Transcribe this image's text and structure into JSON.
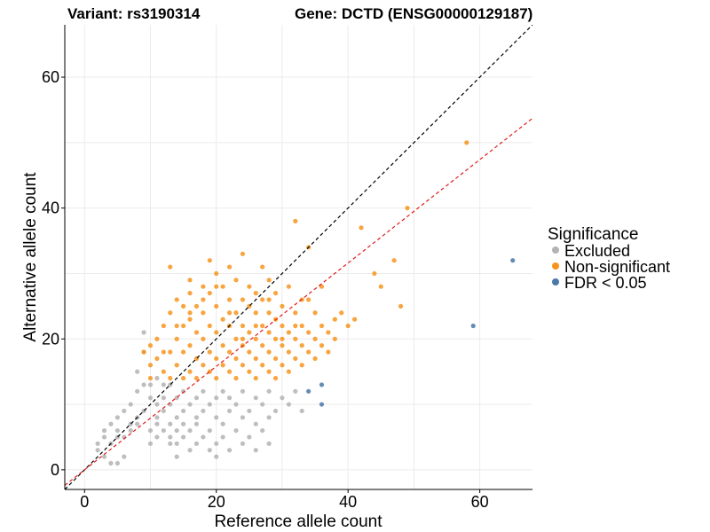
{
  "chart_data": {
    "type": "scatter",
    "title_variant": "Variant: rs3190314",
    "title_gene": "Gene: DCTD (ENSG00000129187)",
    "xlabel": "Reference allele count",
    "ylabel": "Alternative allele count",
    "xlim": [
      -3,
      68
    ],
    "ylim": [
      -3,
      68
    ],
    "xticks": [
      0,
      20,
      40,
      60
    ],
    "yticks": [
      0,
      20,
      40,
      60
    ],
    "xtick_labels": [
      "0",
      "20",
      "40",
      "60"
    ],
    "ytick_labels": [
      "0",
      "20",
      "40",
      "60"
    ],
    "grid": true,
    "legend": {
      "title": "Significance",
      "position": "right",
      "entries": [
        {
          "label": "Excluded",
          "color": "#b3b3b3"
        },
        {
          "label": "Non-significant",
          "color": "#f7941d"
        },
        {
          "label": "FDR < 0.05",
          "color": "#4a78a8"
        }
      ]
    },
    "reference_lines": [
      {
        "kind": "identity",
        "slope": 1.0,
        "intercept": 0,
        "color": "#000000",
        "style": "dashed"
      },
      {
        "kind": "fit",
        "slope": 0.79,
        "intercept": 0,
        "color": "#e31a1c",
        "style": "dashed"
      }
    ],
    "series": [
      {
        "name": "Excluded",
        "color": "#b3b3b3",
        "points": [
          [
            2,
            4
          ],
          [
            3,
            5
          ],
          [
            3,
            6
          ],
          [
            4,
            4
          ],
          [
            4,
            7
          ],
          [
            5,
            5
          ],
          [
            5,
            6
          ],
          [
            5,
            8
          ],
          [
            6,
            9
          ],
          [
            6,
            5
          ],
          [
            7,
            6
          ],
          [
            7,
            7
          ],
          [
            7,
            10
          ],
          [
            8,
            7
          ],
          [
            8,
            8
          ],
          [
            8,
            12
          ],
          [
            8,
            15
          ],
          [
            9,
            9
          ],
          [
            9,
            13
          ],
          [
            9,
            18
          ],
          [
            9,
            21
          ],
          [
            10,
            4
          ],
          [
            10,
            6
          ],
          [
            10,
            11
          ],
          [
            10,
            13
          ],
          [
            11,
            5
          ],
          [
            11,
            7
          ],
          [
            11,
            8
          ],
          [
            11,
            10
          ],
          [
            11,
            14
          ],
          [
            12,
            6
          ],
          [
            12,
            9
          ],
          [
            12,
            11
          ],
          [
            12,
            13
          ],
          [
            13,
            4
          ],
          [
            13,
            5
          ],
          [
            13,
            7
          ],
          [
            13,
            10
          ],
          [
            13,
            13
          ],
          [
            14,
            2
          ],
          [
            14,
            4
          ],
          [
            14,
            6
          ],
          [
            14,
            8
          ],
          [
            14,
            11
          ],
          [
            15,
            5
          ],
          [
            15,
            7
          ],
          [
            15,
            9
          ],
          [
            15,
            12
          ],
          [
            16,
            3
          ],
          [
            16,
            6
          ],
          [
            16,
            10
          ],
          [
            17,
            4
          ],
          [
            17,
            7
          ],
          [
            17,
            8
          ],
          [
            17,
            11
          ],
          [
            18,
            5
          ],
          [
            18,
            9
          ],
          [
            18,
            12
          ],
          [
            19,
            3
          ],
          [
            19,
            6
          ],
          [
            19,
            10
          ],
          [
            20,
            2
          ],
          [
            20,
            4
          ],
          [
            20,
            8
          ],
          [
            20,
            11
          ],
          [
            21,
            5
          ],
          [
            21,
            7
          ],
          [
            21,
            12
          ],
          [
            22,
            3
          ],
          [
            22,
            9
          ],
          [
            22,
            11
          ],
          [
            23,
            6
          ],
          [
            23,
            10
          ],
          [
            24,
            4
          ],
          [
            24,
            8
          ],
          [
            24,
            12
          ],
          [
            25,
            5
          ],
          [
            25,
            9
          ],
          [
            26,
            7
          ],
          [
            26,
            11
          ],
          [
            27,
            6
          ],
          [
            27,
            10
          ],
          [
            28,
            4
          ],
          [
            28,
            8
          ],
          [
            28,
            12
          ],
          [
            29,
            9
          ],
          [
            30,
            11
          ],
          [
            31,
            10
          ],
          [
            32,
            12
          ],
          [
            33,
            9
          ],
          [
            26,
            3
          ],
          [
            4,
            1
          ],
          [
            5,
            1
          ],
          [
            6,
            2
          ],
          [
            3,
            2
          ],
          [
            2,
            3
          ]
        ]
      },
      {
        "name": "Non-significant",
        "color": "#f7941d",
        "points": [
          [
            9,
            18
          ],
          [
            10,
            14
          ],
          [
            10,
            16
          ],
          [
            10,
            19
          ],
          [
            11,
            17
          ],
          [
            11,
            20
          ],
          [
            12,
            15
          ],
          [
            12,
            22
          ],
          [
            13,
            14
          ],
          [
            13,
            18
          ],
          [
            13,
            24
          ],
          [
            13,
            31
          ],
          [
            14,
            16
          ],
          [
            14,
            20
          ],
          [
            14,
            26
          ],
          [
            15,
            14
          ],
          [
            15,
            18
          ],
          [
            15,
            22
          ],
          [
            15,
            25
          ],
          [
            16,
            15
          ],
          [
            16,
            19
          ],
          [
            16,
            23
          ],
          [
            16,
            27
          ],
          [
            16,
            29
          ],
          [
            17,
            14
          ],
          [
            17,
            17
          ],
          [
            17,
            21
          ],
          [
            17,
            25
          ],
          [
            18,
            16
          ],
          [
            18,
            20
          ],
          [
            18,
            24
          ],
          [
            18,
            28
          ],
          [
            19,
            15
          ],
          [
            19,
            18
          ],
          [
            19,
            22
          ],
          [
            19,
            27
          ],
          [
            19,
            32
          ],
          [
            20,
            14
          ],
          [
            20,
            17
          ],
          [
            20,
            21
          ],
          [
            20,
            25
          ],
          [
            20,
            30
          ],
          [
            21,
            16
          ],
          [
            21,
            19
          ],
          [
            21,
            23
          ],
          [
            21,
            28
          ],
          [
            22,
            15
          ],
          [
            22,
            18
          ],
          [
            22,
            22
          ],
          [
            22,
            26
          ],
          [
            22,
            31
          ],
          [
            23,
            14
          ],
          [
            23,
            17
          ],
          [
            23,
            20
          ],
          [
            23,
            24
          ],
          [
            23,
            29
          ],
          [
            24,
            16
          ],
          [
            24,
            19
          ],
          [
            24,
            22
          ],
          [
            24,
            26
          ],
          [
            24,
            33
          ],
          [
            25,
            15
          ],
          [
            25,
            18
          ],
          [
            25,
            21
          ],
          [
            25,
            25
          ],
          [
            25,
            28
          ],
          [
            26,
            14
          ],
          [
            26,
            17
          ],
          [
            26,
            20
          ],
          [
            26,
            24
          ],
          [
            26,
            27
          ],
          [
            27,
            16
          ],
          [
            27,
            19
          ],
          [
            27,
            22
          ],
          [
            27,
            26
          ],
          [
            27,
            31
          ],
          [
            28,
            15
          ],
          [
            28,
            18
          ],
          [
            28,
            21
          ],
          [
            28,
            24
          ],
          [
            28,
            29
          ],
          [
            29,
            14
          ],
          [
            29,
            17
          ],
          [
            29,
            20
          ],
          [
            29,
            23
          ],
          [
            29,
            27
          ],
          [
            30,
            16
          ],
          [
            30,
            19
          ],
          [
            30,
            22
          ],
          [
            30,
            25
          ],
          [
            31,
            15
          ],
          [
            31,
            18
          ],
          [
            31,
            21
          ],
          [
            31,
            28
          ],
          [
            32,
            17
          ],
          [
            32,
            20
          ],
          [
            32,
            24
          ],
          [
            32,
            38
          ],
          [
            33,
            16
          ],
          [
            33,
            19
          ],
          [
            33,
            22
          ],
          [
            33,
            26
          ],
          [
            34,
            18
          ],
          [
            34,
            21
          ],
          [
            34,
            34
          ],
          [
            35,
            17
          ],
          [
            35,
            20
          ],
          [
            35,
            24
          ],
          [
            36,
            19
          ],
          [
            36,
            22
          ],
          [
            37,
            18
          ],
          [
            37,
            21
          ],
          [
            38,
            20
          ],
          [
            39,
            24
          ],
          [
            40,
            22
          ],
          [
            41,
            23
          ],
          [
            42,
            37
          ],
          [
            44,
            30
          ],
          [
            45,
            28
          ],
          [
            47,
            32
          ],
          [
            48,
            25
          ],
          [
            49,
            40
          ],
          [
            58,
            50
          ],
          [
            12,
            18
          ],
          [
            14,
            22
          ],
          [
            16,
            24
          ],
          [
            18,
            26
          ],
          [
            20,
            28
          ],
          [
            22,
            24
          ],
          [
            24,
            20
          ],
          [
            26,
            22
          ],
          [
            28,
            26
          ],
          [
            30,
            20
          ],
          [
            32,
            22
          ],
          [
            34,
            26
          ],
          [
            36,
            28
          ],
          [
            38,
            23
          ]
        ]
      },
      {
        "name": "FDR < 0.05",
        "color": "#4a78a8",
        "points": [
          [
            34,
            12
          ],
          [
            36,
            13
          ],
          [
            36,
            10
          ],
          [
            59,
            22
          ],
          [
            65,
            32
          ]
        ]
      }
    ]
  }
}
